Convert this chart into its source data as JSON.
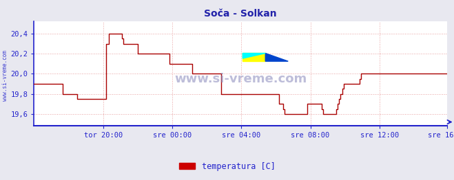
{
  "title": "Soča - Solkan",
  "ylabel_side": "www.si-vreme.com",
  "legend_label": "temperatura [C]",
  "legend_color": "#cc0000",
  "background_color": "#e8e8f0",
  "plot_bg_color": "#ffffff",
  "grid_color": "#e8a0a0",
  "line_color": "#aa0000",
  "axis_color": "#2222cc",
  "tick_color": "#2222cc",
  "title_color": "#2222aa",
  "title_fontsize": 10,
  "ylim": [
    19.48,
    20.52
  ],
  "yticks": [
    19.6,
    19.8,
    20.0,
    20.2,
    20.4
  ],
  "ytick_labels": [
    "19,6",
    "19,8",
    "20,0",
    "20,2",
    "20,4"
  ],
  "xtick_labels": [
    "tor 20:00",
    "sre 00:00",
    "sre 04:00",
    "sre 08:00",
    "sre 12:00",
    "sre 16:00"
  ],
  "watermark": "www.si-vreme.com",
  "temperature_data": [
    19.9,
    19.9,
    19.9,
    19.9,
    19.9,
    19.9,
    19.9,
    19.9,
    19.9,
    19.9,
    19.9,
    19.9,
    19.9,
    19.9,
    19.9,
    19.9,
    19.9,
    19.9,
    19.9,
    19.9,
    19.8,
    19.8,
    19.8,
    19.8,
    19.8,
    19.8,
    19.8,
    19.8,
    19.8,
    19.8,
    19.75,
    19.75,
    19.75,
    19.75,
    19.75,
    19.75,
    19.75,
    19.75,
    19.75,
    19.75,
    19.75,
    19.75,
    19.75,
    19.75,
    19.75,
    19.75,
    19.75,
    19.75,
    19.75,
    19.75,
    20.3,
    20.3,
    20.4,
    20.4,
    20.4,
    20.4,
    20.4,
    20.4,
    20.4,
    20.4,
    20.4,
    20.35,
    20.3,
    20.3,
    20.3,
    20.3,
    20.3,
    20.3,
    20.3,
    20.3,
    20.3,
    20.3,
    20.2,
    20.2,
    20.2,
    20.2,
    20.2,
    20.2,
    20.2,
    20.2,
    20.2,
    20.2,
    20.2,
    20.2,
    20.2,
    20.2,
    20.2,
    20.2,
    20.2,
    20.2,
    20.2,
    20.2,
    20.2,
    20.2,
    20.1,
    20.1,
    20.1,
    20.1,
    20.1,
    20.1,
    20.1,
    20.1,
    20.1,
    20.1,
    20.1,
    20.1,
    20.1,
    20.1,
    20.1,
    20.1,
    20.0,
    20.0,
    20.0,
    20.0,
    20.0,
    20.0,
    20.0,
    20.0,
    20.0,
    20.0,
    20.0,
    20.0,
    20.0,
    20.0,
    20.0,
    20.0,
    20.0,
    20.0,
    20.0,
    20.0,
    19.8,
    19.8,
    19.8,
    19.8,
    19.8,
    19.8,
    19.8,
    19.8,
    19.8,
    19.8,
    19.8,
    19.8,
    19.8,
    19.8,
    19.8,
    19.8,
    19.8,
    19.8,
    19.8,
    19.8,
    19.8,
    19.8,
    19.8,
    19.8,
    19.8,
    19.8,
    19.8,
    19.8,
    19.8,
    19.8,
    19.8,
    19.8,
    19.8,
    19.8,
    19.8,
    19.8,
    19.8,
    19.8,
    19.8,
    19.8,
    19.7,
    19.7,
    19.7,
    19.65,
    19.6,
    19.6,
    19.6,
    19.6,
    19.6,
    19.6,
    19.6,
    19.6,
    19.6,
    19.6,
    19.6,
    19.6,
    19.6,
    19.6,
    19.6,
    19.6,
    19.7,
    19.7,
    19.7,
    19.7,
    19.7,
    19.7,
    19.7,
    19.7,
    19.7,
    19.7,
    19.65,
    19.6,
    19.6,
    19.6,
    19.6,
    19.6,
    19.6,
    19.6,
    19.6,
    19.6,
    19.65,
    19.7,
    19.75,
    19.8,
    19.85,
    19.9,
    19.9,
    19.9,
    19.9,
    19.9,
    19.9,
    19.9,
    19.9,
    19.9,
    19.9,
    19.9,
    19.95,
    20.0,
    20.0,
    20.0,
    20.0,
    20.0,
    20.0,
    20.0,
    20.0,
    20.0,
    20.0,
    20.0,
    20.0,
    20.0,
    20.0,
    20.0,
    20.0,
    20.0,
    20.0,
    20.0,
    20.0,
    20.0,
    20.0,
    20.0,
    20.0,
    20.0,
    20.0,
    20.0,
    20.0,
    20.0,
    20.0,
    20.0,
    20.0,
    20.0,
    20.0,
    20.0,
    20.0,
    20.0,
    20.0,
    20.0,
    20.0,
    20.0,
    20.0,
    20.0,
    20.0,
    20.0,
    20.0,
    20.0,
    20.0,
    20.0,
    20.0,
    20.0,
    20.0,
    20.0,
    20.0,
    20.0,
    20.0,
    20.0,
    20.0,
    20.0,
    20.0,
    20.0
  ]
}
